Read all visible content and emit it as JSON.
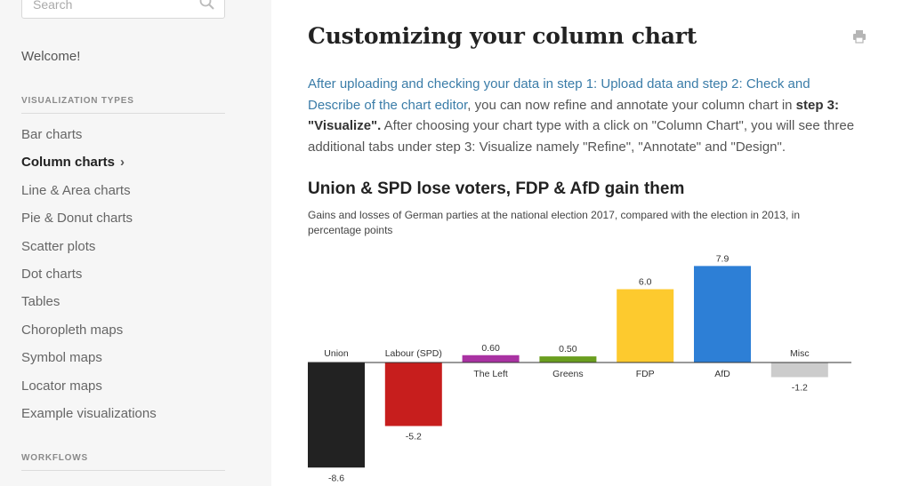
{
  "sidebar": {
    "search_placeholder": "Search",
    "welcome": "Welcome!",
    "section_visualization": "VISUALIZATION TYPES",
    "items": [
      {
        "label": "Bar charts"
      },
      {
        "label": "Column charts",
        "active": true
      },
      {
        "label": "Line & Area charts"
      },
      {
        "label": "Pie & Donut charts"
      },
      {
        "label": "Scatter plots"
      },
      {
        "label": "Dot charts"
      },
      {
        "label": "Tables"
      },
      {
        "label": "Choropleth maps"
      },
      {
        "label": "Symbol maps"
      },
      {
        "label": "Locator maps"
      },
      {
        "label": "Example visualizations"
      }
    ],
    "section_workflows": "WORKFLOWS"
  },
  "main": {
    "title": "Customizing your column chart",
    "intro": {
      "link_text": "After uploading and checking your data in step 1: Upload data and step 2: Check and Describe of the chart editor",
      "text_a": ", you can now refine and annotate your column chart in ",
      "bold_a": "step 3: \"Visualize\".",
      "text_b": " After choosing your chart type with a click on \"Column Chart\", you will see three additional tabs under step 3: Visualize namely \"Refine\", \"Annotate\" and \"Design\"."
    }
  },
  "chart_data": {
    "type": "bar",
    "title": "Union & SPD lose voters, FDP & AfD gain them",
    "subtitle": "Gains and losses of German parties at the national election 2017, compared with the election in 2013, in percentage points",
    "categories": [
      "Union",
      "Labour (SPD)",
      "The Left",
      "Greens",
      "FDP",
      "AfD",
      "Misc"
    ],
    "values": [
      -8.6,
      -5.2,
      0.6,
      0.5,
      6.0,
      7.9,
      -1.2
    ],
    "value_labels": [
      "-8.6",
      "-5.2",
      "0.60",
      "0.50",
      "6.0",
      "7.9",
      "-1.2"
    ],
    "colors": [
      "#222222",
      "#c71e1d",
      "#a932a2",
      "#6a9e1f",
      "#fdca2e",
      "#2d7fd6",
      "#cccccc"
    ],
    "ylim": [
      -8.6,
      7.9
    ],
    "grid": false
  }
}
